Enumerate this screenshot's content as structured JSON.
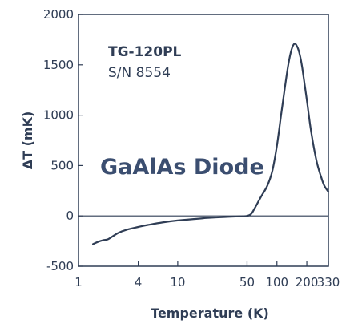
{
  "chart_data": {
    "type": "line",
    "title": "",
    "xlabel": "Temperature (K)",
    "ylabel": "ΔT (mK)",
    "xscale": "log",
    "xlim": [
      1,
      330
    ],
    "ylim": [
      -500,
      2000
    ],
    "grid": false,
    "legend": "none",
    "xticks": [
      {
        "value": 1,
        "label": "1"
      },
      {
        "value": 4,
        "label": "4"
      },
      {
        "value": 10,
        "label": "10"
      },
      {
        "value": 50,
        "label": "50"
      },
      {
        "value": 100,
        "label": "100"
      },
      {
        "value": 200,
        "label": "200"
      },
      {
        "value": 330,
        "label": "330"
      }
    ],
    "yticks": [
      {
        "value": 2000,
        "label": "2000"
      },
      {
        "value": 1500,
        "label": "1500"
      },
      {
        "value": 1000,
        "label": "1000"
      },
      {
        "value": 500,
        "label": "500"
      },
      {
        "value": 0,
        "label": "0"
      },
      {
        "value": -500,
        "label": "-500"
      }
    ],
    "annotations": [
      "TG-120PL",
      "S/N 8554",
      "GaAlAs Diode"
    ],
    "reference_line": {
      "y": 0
    },
    "line_color": "#2f3d55",
    "series": [
      {
        "x": [
          1.4,
          1.6,
          1.8,
          2.0,
          2.5,
          3.0,
          4.0,
          5.0,
          7.0,
          10,
          15,
          20,
          30,
          40,
          45,
          50,
          55,
          60,
          70,
          80,
          90,
          100,
          110,
          120,
          130,
          140,
          150,
          160,
          170,
          180,
          200,
          220,
          250,
          280,
          300,
          330
        ],
        "y": [
          -280,
          -255,
          -240,
          -230,
          -170,
          -140,
          -110,
          -90,
          -65,
          -45,
          -30,
          -20,
          -10,
          -5,
          -3,
          0,
          20,
          80,
          200,
          300,
          450,
          700,
          1000,
          1270,
          1500,
          1650,
          1710,
          1680,
          1600,
          1470,
          1150,
          850,
          550,
          380,
          300,
          240
        ]
      }
    ]
  }
}
